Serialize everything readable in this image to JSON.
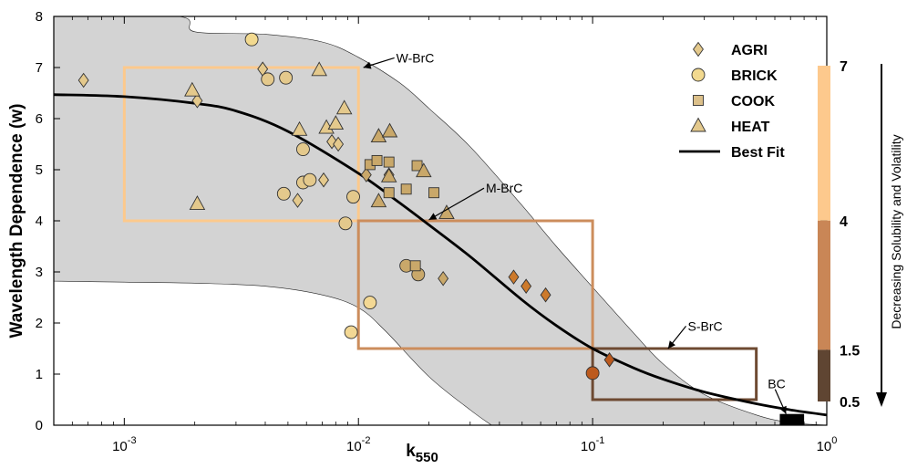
{
  "chart_data": {
    "type": "scatter",
    "xlabel": "k550",
    "ylabel": "Wavelength Dependence (w)",
    "xscale": "log",
    "xlim": [
      0.0005,
      1
    ],
    "ylim": [
      0,
      8
    ],
    "x_tick_labels": [
      "10-3",
      "10-2",
      "10-1",
      "100"
    ],
    "y_ticks": [
      "0",
      "1",
      "2",
      "3",
      "4",
      "5",
      "6",
      "7",
      "8"
    ],
    "grid": false,
    "legend_position": "top-right",
    "series": [
      {
        "name": "AGRI",
        "marker": "diamond",
        "points": [
          {
            "x": 0.00067,
            "y": 6.75
          },
          {
            "x": 0.00205,
            "y": 6.35
          },
          {
            "x": 0.0039,
            "y": 6.97
          },
          {
            "x": 0.0055,
            "y": 4.4
          },
          {
            "x": 0.0071,
            "y": 4.8
          },
          {
            "x": 0.0077,
            "y": 5.55
          },
          {
            "x": 0.0082,
            "y": 5.5
          },
          {
            "x": 0.0108,
            "y": 4.9
          },
          {
            "x": 0.0135,
            "y": 4.9
          },
          {
            "x": 0.023,
            "y": 2.87
          },
          {
            "x": 0.046,
            "y": 2.9
          },
          {
            "x": 0.052,
            "y": 2.72
          },
          {
            "x": 0.063,
            "y": 2.55
          },
          {
            "x": 0.118,
            "y": 1.28
          }
        ]
      },
      {
        "name": "BRICK",
        "marker": "circle",
        "points": [
          {
            "x": 0.0035,
            "y": 7.55
          },
          {
            "x": 0.0041,
            "y": 6.77
          },
          {
            "x": 0.0049,
            "y": 6.8
          },
          {
            "x": 0.0048,
            "y": 4.53
          },
          {
            "x": 0.0058,
            "y": 5.4
          },
          {
            "x": 0.0058,
            "y": 4.75
          },
          {
            "x": 0.0062,
            "y": 4.8
          },
          {
            "x": 0.0088,
            "y": 3.95
          },
          {
            "x": 0.0095,
            "y": 4.47
          },
          {
            "x": 0.0093,
            "y": 1.82
          },
          {
            "x": 0.0112,
            "y": 2.4
          },
          {
            "x": 0.016,
            "y": 3.12
          },
          {
            "x": 0.018,
            "y": 2.95
          },
          {
            "x": 0.1,
            "y": 1.02
          }
        ]
      },
      {
        "name": "COOK",
        "marker": "square",
        "points": [
          {
            "x": 0.0112,
            "y": 5.1
          },
          {
            "x": 0.012,
            "y": 5.18
          },
          {
            "x": 0.0135,
            "y": 5.15
          },
          {
            "x": 0.0135,
            "y": 4.55
          },
          {
            "x": 0.016,
            "y": 4.62
          },
          {
            "x": 0.0178,
            "y": 5.08
          },
          {
            "x": 0.021,
            "y": 4.55
          },
          {
            "x": 0.0175,
            "y": 3.12
          }
        ]
      },
      {
        "name": "HEAT",
        "marker": "triangle",
        "points": [
          {
            "x": 0.00195,
            "y": 6.55
          },
          {
            "x": 0.00205,
            "y": 4.33
          },
          {
            "x": 0.0056,
            "y": 5.78
          },
          {
            "x": 0.0068,
            "y": 6.95
          },
          {
            "x": 0.0073,
            "y": 5.82
          },
          {
            "x": 0.008,
            "y": 5.9
          },
          {
            "x": 0.0087,
            "y": 6.2
          },
          {
            "x": 0.0122,
            "y": 5.65
          },
          {
            "x": 0.0136,
            "y": 5.75
          },
          {
            "x": 0.0122,
            "y": 4.38
          },
          {
            "x": 0.0135,
            "y": 4.87
          },
          {
            "x": 0.019,
            "y": 4.97
          },
          {
            "x": 0.0238,
            "y": 4.15
          }
        ]
      },
      {
        "name": "Best Fit",
        "type": "line",
        "points": [
          {
            "x": 0.0005,
            "y": 6.47
          },
          {
            "x": 0.001,
            "y": 6.43
          },
          {
            "x": 0.002,
            "y": 6.3
          },
          {
            "x": 0.003,
            "y": 6.15
          },
          {
            "x": 0.005,
            "y": 5.75
          },
          {
            "x": 0.01,
            "y": 4.93
          },
          {
            "x": 0.015,
            "y": 4.35
          },
          {
            "x": 0.02,
            "y": 3.92
          },
          {
            "x": 0.03,
            "y": 3.3
          },
          {
            "x": 0.05,
            "y": 2.45
          },
          {
            "x": 0.07,
            "y": 1.95
          },
          {
            "x": 0.1,
            "y": 1.5
          },
          {
            "x": 0.15,
            "y": 1.12
          },
          {
            "x": 0.2,
            "y": 0.9
          },
          {
            "x": 0.3,
            "y": 0.65
          },
          {
            "x": 0.5,
            "y": 0.42
          },
          {
            "x": 0.7,
            "y": 0.3
          },
          {
            "x": 1.0,
            "y": 0.2
          }
        ]
      }
    ],
    "uncertainty_band": {
      "upper": [
        {
          "x": 0.0005,
          "y": 8
        },
        {
          "x": 0.0017,
          "y": 8
        },
        {
          "x": 0.002,
          "y": 7.7
        },
        {
          "x": 0.004,
          "y": 7.65
        },
        {
          "x": 0.007,
          "y": 7.5
        },
        {
          "x": 0.01,
          "y": 7.2
        },
        {
          "x": 0.015,
          "y": 6.7
        },
        {
          "x": 0.02,
          "y": 6.2
        },
        {
          "x": 0.03,
          "y": 5.45
        },
        {
          "x": 0.05,
          "y": 4.3
        },
        {
          "x": 0.07,
          "y": 3.5
        },
        {
          "x": 0.1,
          "y": 2.7
        },
        {
          "x": 0.15,
          "y": 1.8
        },
        {
          "x": 0.2,
          "y": 1.2
        },
        {
          "x": 0.3,
          "y": 0.6
        },
        {
          "x": 0.5,
          "y": 0.2
        },
        {
          "x": 0.7,
          "y": 0.05
        },
        {
          "x": 1.0,
          "y": 0.0
        }
      ],
      "lower": [
        {
          "x": 0.0005,
          "y": 2.82
        },
        {
          "x": 0.001,
          "y": 2.8
        },
        {
          "x": 0.002,
          "y": 2.78
        },
        {
          "x": 0.004,
          "y": 2.72
        },
        {
          "x": 0.007,
          "y": 2.55
        },
        {
          "x": 0.01,
          "y": 2.3
        },
        {
          "x": 0.013,
          "y": 1.85
        },
        {
          "x": 0.02,
          "y": 0.95
        },
        {
          "x": 0.03,
          "y": 0.3
        },
        {
          "x": 0.037,
          "y": 0.0
        }
      ]
    },
    "regions": [
      {
        "label": "W-BrC",
        "x": [
          0.001,
          0.01
        ],
        "y": [
          4,
          7
        ],
        "color": "#fcc98c"
      },
      {
        "label": "M-BrC",
        "x": [
          0.01,
          0.1
        ],
        "y": [
          1.5,
          4
        ],
        "color": "#cc8d5c"
      },
      {
        "label": "S-BrC",
        "x": [
          0.1,
          0.5
        ],
        "y": [
          0.5,
          1.5
        ],
        "color": "#6e4a32"
      },
      {
        "label": "BC",
        "x": [
          0.63,
          0.8
        ],
        "y": [
          0,
          0.22
        ],
        "color": "#000000"
      }
    ],
    "colorbar": {
      "label": "Decreasing Solubility and Volatility",
      "tick_labels": [
        "7",
        "4",
        "1.5",
        "0.5"
      ],
      "bands": [
        {
          "from": 4,
          "to": 7,
          "color": "#fdc98d"
        },
        {
          "from": 1.5,
          "to": 4,
          "color": "#c98656"
        },
        {
          "from": 0.5,
          "to": 1.5,
          "color": "#5f4532"
        }
      ]
    }
  }
}
